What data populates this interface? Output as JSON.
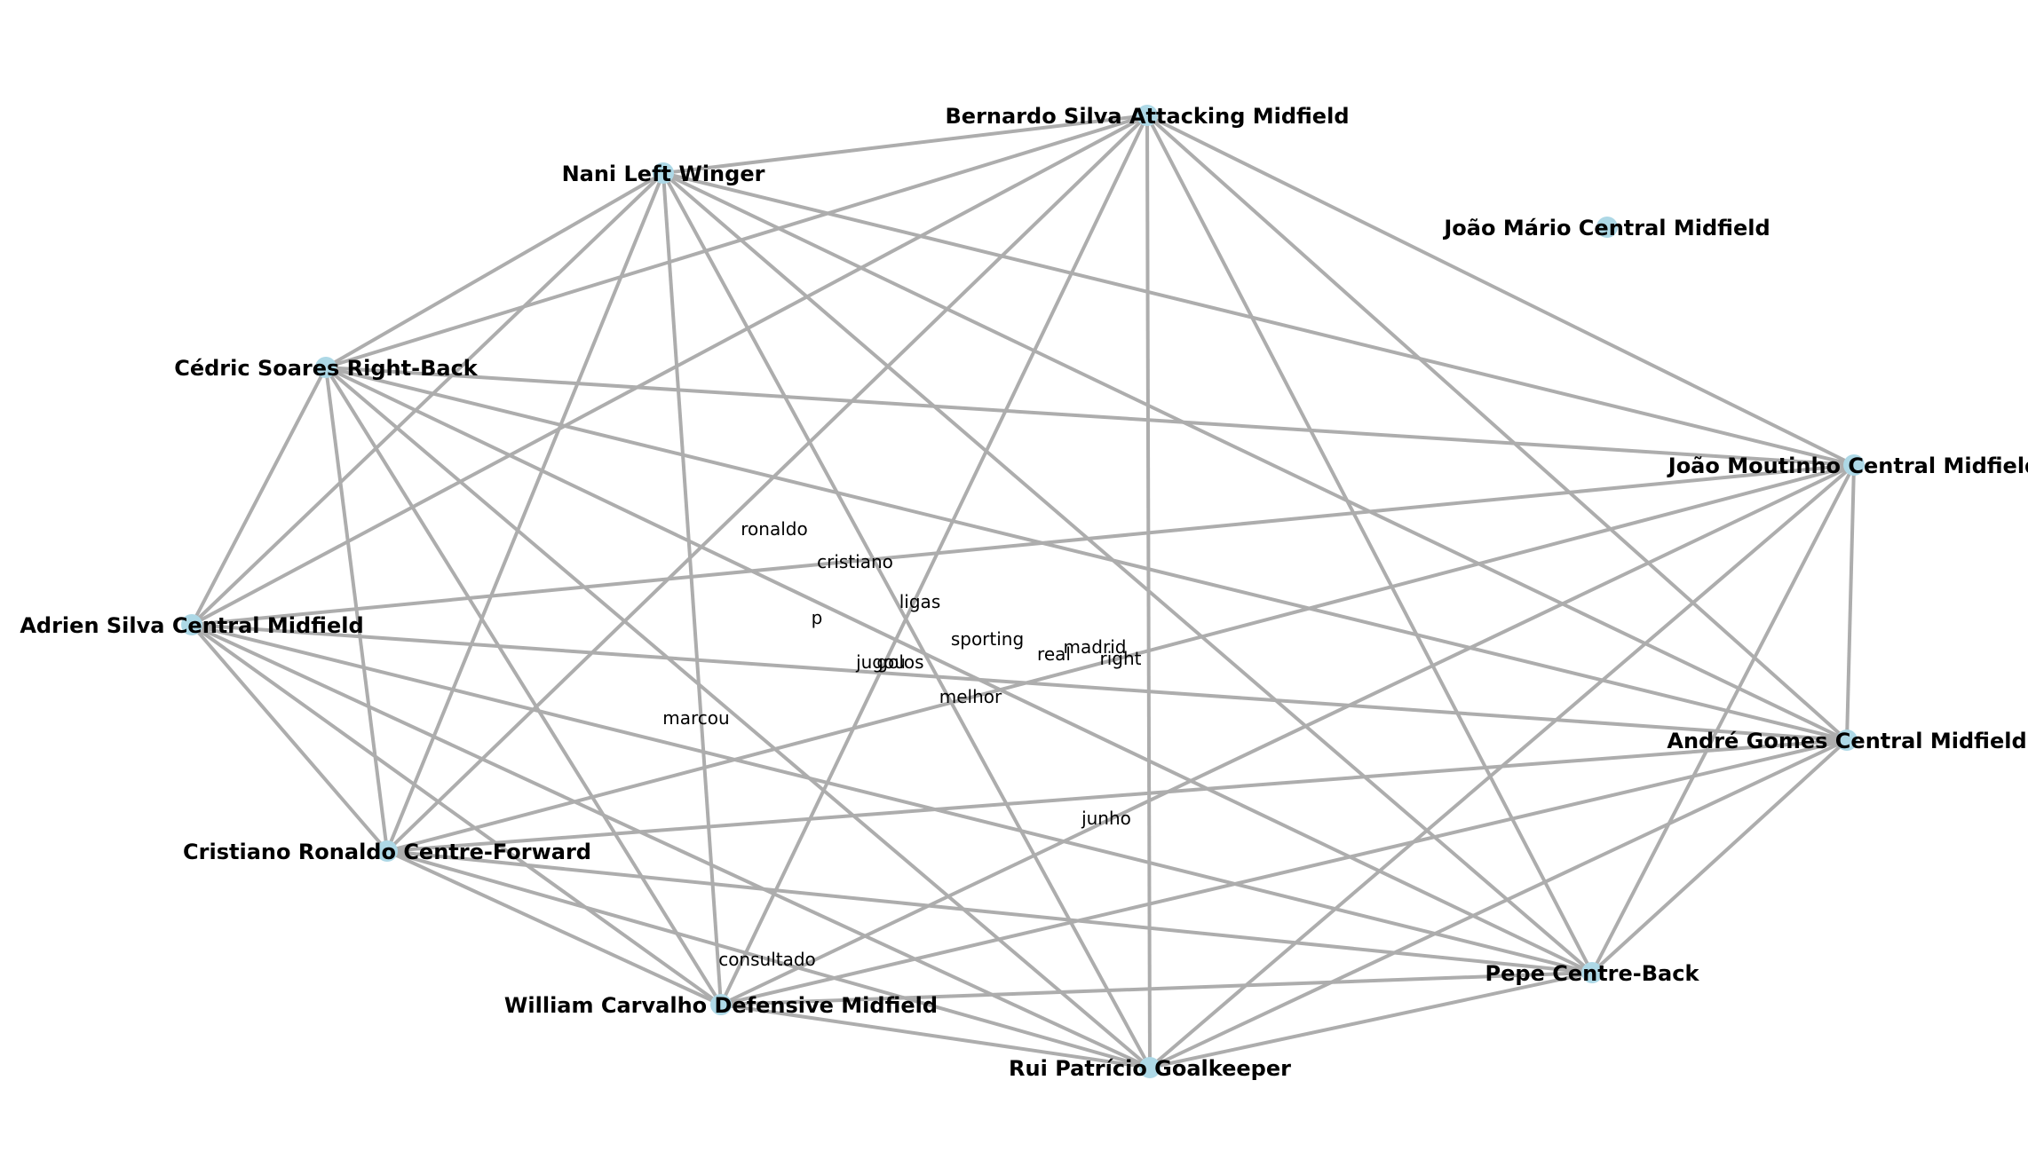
{
  "graph": {
    "type": "network",
    "colors": {
      "node_fill": "#add8e6",
      "edge": "#adadad",
      "label": "#000000",
      "background": "#ffffff"
    },
    "nodes": [
      {
        "id": "bernardo",
        "label": "Bernardo Silva Attacking Midfield"
      },
      {
        "id": "nani",
        "label": "Nani Left Winger"
      },
      {
        "id": "joao_mario",
        "label": "João Mário Central Midfield"
      },
      {
        "id": "cedric",
        "label": "Cédric Soares Right-Back"
      },
      {
        "id": "moutinho",
        "label": "João Moutinho Central Midfield"
      },
      {
        "id": "adrien",
        "label": "Adrien Silva Central Midfield"
      },
      {
        "id": "andre",
        "label": "André Gomes Central Midfield"
      },
      {
        "id": "ronaldo",
        "label": "Cristiano Ronaldo Centre-Forward"
      },
      {
        "id": "pepe",
        "label": "Pepe Centre-Back"
      },
      {
        "id": "william",
        "label": "William Carvalho Defensive Midfield"
      },
      {
        "id": "rui",
        "label": "Rui Patrício Goalkeeper"
      }
    ],
    "edges": [
      [
        "nani",
        "bernardo"
      ],
      [
        "nani",
        "cedric"
      ],
      [
        "nani",
        "adrien"
      ],
      [
        "nani",
        "ronaldo"
      ],
      [
        "nani",
        "william"
      ],
      [
        "nani",
        "rui"
      ],
      [
        "nani",
        "pepe"
      ],
      [
        "nani",
        "andre"
      ],
      [
        "nani",
        "moutinho"
      ],
      [
        "bernardo",
        "cedric"
      ],
      [
        "bernardo",
        "adrien"
      ],
      [
        "bernardo",
        "ronaldo"
      ],
      [
        "bernardo",
        "william"
      ],
      [
        "bernardo",
        "rui"
      ],
      [
        "bernardo",
        "pepe"
      ],
      [
        "bernardo",
        "andre"
      ],
      [
        "bernardo",
        "moutinho"
      ],
      [
        "cedric",
        "adrien"
      ],
      [
        "cedric",
        "ronaldo"
      ],
      [
        "cedric",
        "william"
      ],
      [
        "cedric",
        "rui"
      ],
      [
        "cedric",
        "pepe"
      ],
      [
        "cedric",
        "andre"
      ],
      [
        "cedric",
        "moutinho"
      ],
      [
        "adrien",
        "moutinho"
      ],
      [
        "adrien",
        "andre"
      ],
      [
        "adrien",
        "ronaldo"
      ],
      [
        "adrien",
        "william"
      ],
      [
        "adrien",
        "rui"
      ],
      [
        "adrien",
        "pepe"
      ],
      [
        "ronaldo",
        "moutinho"
      ],
      [
        "ronaldo",
        "andre"
      ],
      [
        "ronaldo",
        "pepe"
      ],
      [
        "ronaldo",
        "william"
      ],
      [
        "ronaldo",
        "rui"
      ],
      [
        "william",
        "moutinho"
      ],
      [
        "william",
        "andre"
      ],
      [
        "william",
        "pepe"
      ],
      [
        "william",
        "rui"
      ],
      [
        "rui",
        "moutinho"
      ],
      [
        "rui",
        "andre"
      ],
      [
        "rui",
        "pepe"
      ],
      [
        "pepe",
        "andre"
      ],
      [
        "pepe",
        "moutinho"
      ],
      [
        "andre",
        "moutinho"
      ]
    ],
    "edge_labels": [
      "ronaldo",
      "cristiano",
      "ligas",
      "p",
      "sporting",
      "madrid",
      "real",
      "right",
      "jugou",
      "golos",
      "melhor",
      "marcou",
      "junho",
      "consultado"
    ]
  }
}
